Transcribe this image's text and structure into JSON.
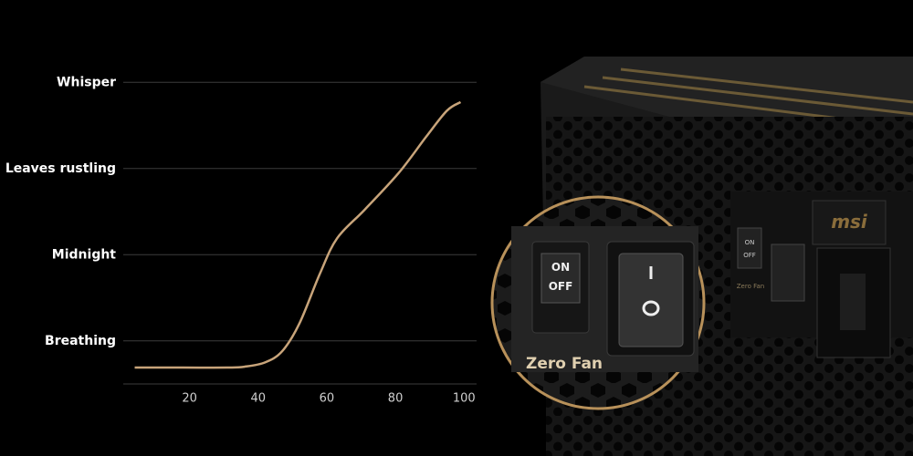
{
  "chart_data": {
    "type": "line",
    "y_categories": [
      "Breathing",
      "Midnight",
      "Leaves rustling",
      "Whisper"
    ],
    "yticks": [
      {
        "value": 1,
        "label": "Breathing"
      },
      {
        "value": 2,
        "label": "Midnight"
      },
      {
        "value": 3,
        "label": "Leaves rustling"
      },
      {
        "value": 4,
        "label": "Whisper"
      }
    ],
    "ylim": [
      0.5,
      4.5
    ],
    "xlim": [
      0,
      103
    ],
    "xticks": [
      20,
      40,
      60,
      80,
      100
    ],
    "grid": true,
    "x": [
      4,
      18,
      31,
      36,
      42,
      47,
      52,
      58,
      63,
      71,
      81,
      89,
      95,
      99
    ],
    "series": [
      {
        "color": "#c8a47a",
        "values": [
          0.69,
          0.69,
          0.69,
          0.7,
          0.75,
          0.88,
          1.2,
          1.78,
          2.19,
          2.52,
          2.95,
          3.37,
          3.67,
          3.77
        ]
      }
    ]
  },
  "image_texts": {
    "logo": "msi",
    "panel_on": "ON",
    "panel_off": "OFF",
    "panel_label": "Zero Fan",
    "zoom_on": "ON",
    "zoom_off": "OFF",
    "zoom_label": "Zero Fan"
  }
}
